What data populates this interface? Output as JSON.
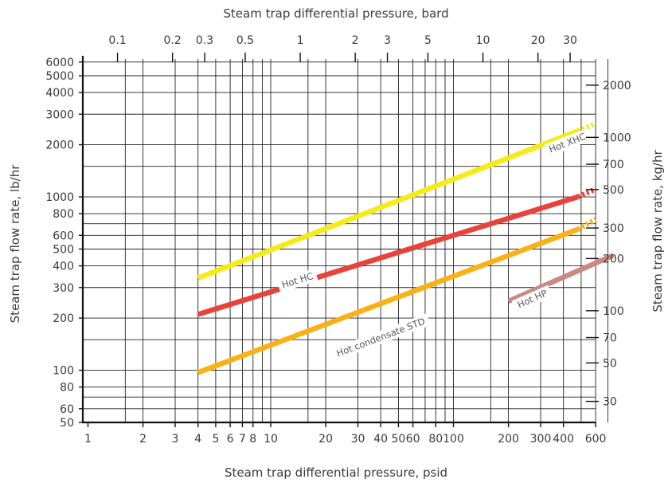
{
  "chart_data": {
    "type": "line",
    "xlabel_top": "Steam trap differential pressure, bard",
    "xlabel": "Steam trap differential pressure, psid",
    "ylabel": "Steam trap flow rate, lb/hr",
    "ylabel_right": "Steam trap flow rate, kg/hr",
    "x_scale": "log",
    "y_scale": "log",
    "xlim": [
      1,
      750
    ],
    "ylim": [
      50,
      6000
    ],
    "grid": true,
    "x_ticks_bottom": [
      {
        "v": 1,
        "label": "1"
      },
      {
        "v": 2,
        "label": "2"
      },
      {
        "v": 3,
        "label": "3"
      },
      {
        "v": 4,
        "label": "4"
      },
      {
        "v": 5,
        "label": "5"
      },
      {
        "v": 6,
        "label": "6"
      },
      {
        "v": 7,
        "label": "7"
      },
      {
        "v": 8,
        "label": "8"
      },
      {
        "v": 10,
        "label": "10"
      },
      {
        "v": 20,
        "label": "20"
      },
      {
        "v": 30,
        "label": "30"
      },
      {
        "v": 40,
        "label": "40"
      },
      {
        "v": 50,
        "label": "50"
      },
      {
        "v": 60,
        "label": "60"
      },
      {
        "v": 80,
        "label": "80"
      },
      {
        "v": 100,
        "label": "100"
      },
      {
        "v": 200,
        "label": "200"
      },
      {
        "v": 300,
        "label": "300"
      },
      {
        "v": 400,
        "label": "400"
      },
      {
        "v": 600,
        "label": "600"
      }
    ],
    "x_gridlines": [
      1.6,
      2,
      3,
      4,
      5,
      6,
      7,
      8,
      9,
      10,
      16,
      20,
      30,
      40,
      50,
      60,
      70,
      80,
      90,
      100,
      160,
      200,
      300,
      400,
      500,
      600,
      700
    ],
    "x_ticks_top": [
      {
        "v": 0.1,
        "label": "0.1"
      },
      {
        "v": 0.2,
        "label": "0.2"
      },
      {
        "v": 0.3,
        "label": "0.3"
      },
      {
        "v": 0.5,
        "label": "0.5"
      },
      {
        "v": 1,
        "label": "1"
      },
      {
        "v": 2,
        "label": "2"
      },
      {
        "v": 3,
        "label": "3"
      },
      {
        "v": 5,
        "label": "5"
      },
      {
        "v": 10,
        "label": "10"
      },
      {
        "v": 20,
        "label": "20"
      },
      {
        "v": 30,
        "label": "30"
      }
    ],
    "y_ticks_left": [
      {
        "v": 50,
        "label": "50"
      },
      {
        "v": 60,
        "label": "60"
      },
      {
        "v": 80,
        "label": "80"
      },
      {
        "v": 100,
        "label": "100"
      },
      {
        "v": 200,
        "label": "200"
      },
      {
        "v": 300,
        "label": "300"
      },
      {
        "v": 400,
        "label": "400"
      },
      {
        "v": 500,
        "label": "500"
      },
      {
        "v": 600,
        "label": "600"
      },
      {
        "v": 800,
        "label": "800"
      },
      {
        "v": 1000,
        "label": "1000"
      },
      {
        "v": 2000,
        "label": "2000"
      },
      {
        "v": 3000,
        "label": "3000"
      },
      {
        "v": 4000,
        "label": "4000"
      },
      {
        "v": 5000,
        "label": "5000"
      },
      {
        "v": 6000,
        "label": "6000"
      }
    ],
    "y_gridlines": [
      50,
      60,
      70,
      80,
      100,
      150,
      200,
      300,
      400,
      500,
      600,
      700,
      800,
      1000,
      1500,
      2000,
      3000,
      4000,
      5000,
      6000
    ],
    "y_ticks_right": [
      {
        "v": 30,
        "label": "30"
      },
      {
        "v": 50,
        "label": "50"
      },
      {
        "v": 70,
        "label": "70"
      },
      {
        "v": 100,
        "label": "100"
      },
      {
        "v": 200,
        "label": "200"
      },
      {
        "v": 300,
        "label": "300"
      },
      {
        "v": 500,
        "label": "500"
      },
      {
        "v": 700,
        "label": "700"
      },
      {
        "v": 1000,
        "label": "1000"
      },
      {
        "v": 2000,
        "label": "2000"
      }
    ],
    "series": [
      {
        "name": "Hot XHC",
        "color": "#f7ea1a",
        "solid": [
          [
            4,
            340
          ],
          [
            480,
            2400
          ]
        ],
        "dotted": [
          [
            480,
            2400
          ],
          [
            600,
            2650
          ]
        ],
        "label_at": [
          420,
          2050
        ]
      },
      {
        "name": "Hot HC",
        "color": "#e8433a",
        "solid": [
          [
            4,
            210
          ],
          [
            480,
            1000
          ]
        ],
        "dotted": [
          [
            480,
            1000
          ],
          [
            600,
            1110
          ]
        ],
        "label_at": [
          14,
          330
        ]
      },
      {
        "name": "Hot condensate STD",
        "color": "#f9b215",
        "solid": [
          [
            4,
            97
          ],
          [
            480,
            650
          ]
        ],
        "dotted": [
          [
            480,
            650
          ],
          [
            600,
            740
          ]
        ],
        "label_at": [
          40,
          155
        ]
      },
      {
        "name": "Hot HP",
        "color": "#c98a84",
        "solid": [
          [
            200,
            250
          ],
          [
            750,
            460
          ]
        ],
        "dotted": [],
        "label_at": [
          270,
          258
        ]
      }
    ]
  }
}
